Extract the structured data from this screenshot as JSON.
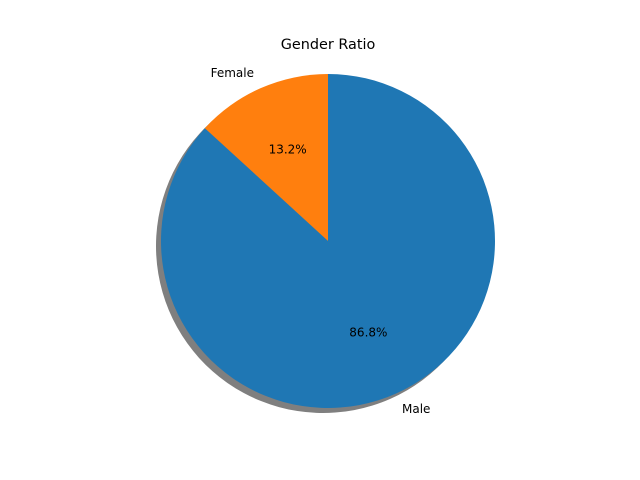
{
  "chart_data": {
    "type": "pie",
    "title": "Gender Ratio",
    "slices": [
      {
        "label": "Female",
        "value": 13.2,
        "pct_label": "13.2%",
        "color": "#ff7f0e"
      },
      {
        "label": "Male",
        "value": 86.8,
        "pct_label": "86.8%",
        "color": "#1f77b4"
      }
    ],
    "start_angle_deg": 90,
    "direction": "counterclockwise",
    "shadow": true,
    "shadow_color": "#7f7f7f"
  }
}
